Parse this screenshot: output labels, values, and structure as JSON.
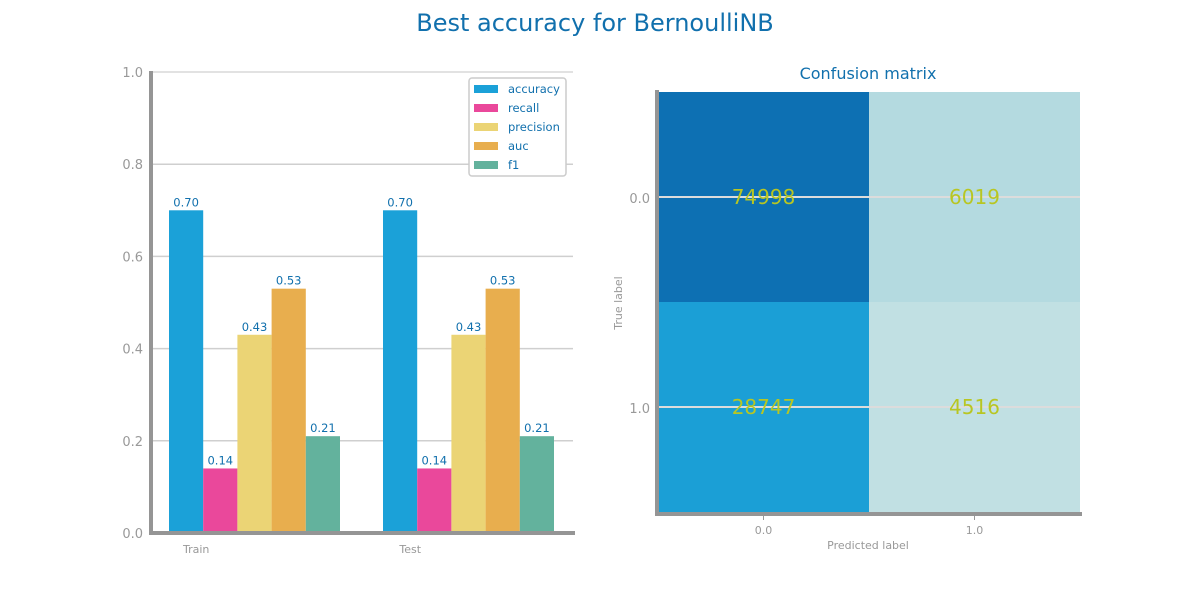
{
  "title": "Best accuracy for BernoulliNB",
  "colors": {
    "accuracy": "#1ba1d8",
    "recall": "#ea489b",
    "precision": "#ebd475",
    "auc": "#e8ae4e",
    "f1": "#63b29d",
    "text_blue": "#1170ad",
    "axis_gray": "#999999",
    "grid_gray": "#cfcfcf",
    "cm_text": "#b8c622",
    "cm_dark": "#0d70b3",
    "cm_mid": "#1b9fd6",
    "cm_light1": "#b4dae0",
    "cm_light2": "#c1e0e3"
  },
  "chart_data": [
    {
      "type": "bar",
      "categories": [
        "Train",
        "Test"
      ],
      "series": [
        {
          "name": "accuracy",
          "values": [
            0.7,
            0.7
          ]
        },
        {
          "name": "recall",
          "values": [
            0.14,
            0.14
          ]
        },
        {
          "name": "precision",
          "values": [
            0.43,
            0.43
          ]
        },
        {
          "name": "auc",
          "values": [
            0.53,
            0.53
          ]
        },
        {
          "name": "f1",
          "values": [
            0.21,
            0.21
          ]
        }
      ],
      "value_labels": [
        [
          "0.70",
          "0.14",
          "0.43",
          "0.53",
          "0.21"
        ],
        [
          "0.70",
          "0.14",
          "0.43",
          "0.53",
          "0.21"
        ]
      ],
      "ylim": [
        0,
        1.0
      ],
      "yticks": [
        "0.0",
        "0.2",
        "0.4",
        "0.6",
        "0.8",
        "1.0"
      ],
      "grid": true,
      "legend": "top-right"
    },
    {
      "type": "heatmap",
      "title": "Confusion matrix",
      "xlabel": "Predicted label",
      "ylabel": "True label",
      "xticks": [
        "0.0",
        "1.0"
      ],
      "yticks": [
        "0.0",
        "1.0"
      ],
      "matrix": [
        [
          74998,
          6019
        ],
        [
          28747,
          4516
        ]
      ]
    }
  ]
}
